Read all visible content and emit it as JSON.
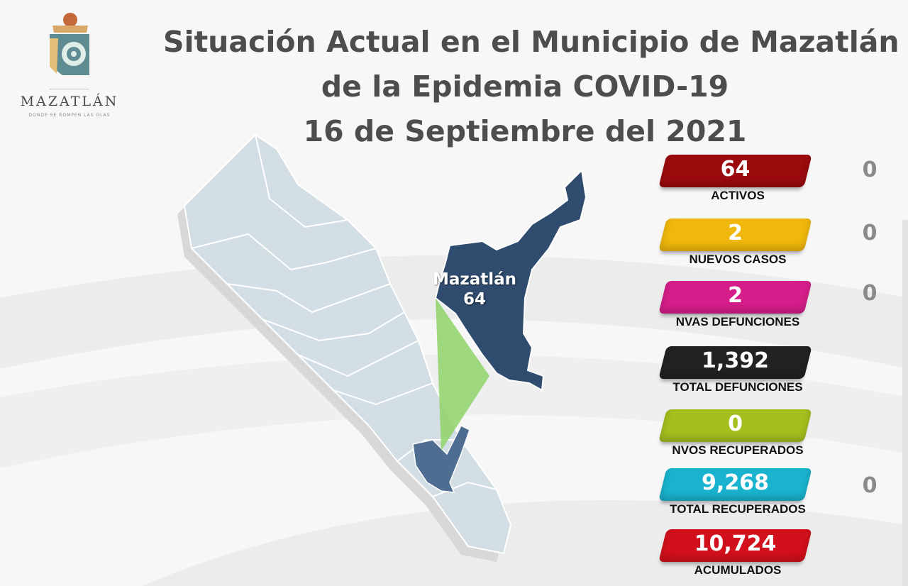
{
  "logo": {
    "wordmark": "MAZATLÁN",
    "tagline": "DONDE SE ROMPEN LAS OLAS",
    "icon": "mazatlan-shell-logo"
  },
  "title": {
    "line1": "Situación Actual en el Municipio de Mazatlán",
    "line2": "de la Epidemia COVID-19",
    "line3": "16 de Septiembre del 2021"
  },
  "map": {
    "region_name": "Mazatlán",
    "region_value": "64",
    "highlight_color": "#2f4b6e",
    "state_color": "#d3dde4",
    "callout_color": "#8fd36a"
  },
  "stats": [
    {
      "value": "64",
      "label": "ACTIVOS",
      "color": "#9b0a0d",
      "delta": "0"
    },
    {
      "value": "2",
      "label": "NUEVOS CASOS",
      "color": "#f0b80c",
      "delta": "0"
    },
    {
      "value": "2",
      "label": "NVAS DEFUNCIONES",
      "color": "#d61e8a",
      "delta": "0"
    },
    {
      "value": "1,392",
      "label": "TOTAL DEFUNCIONES",
      "color": "#222222",
      "delta": ""
    },
    {
      "value": "0",
      "label": "NVOS RECUPERADOS",
      "color": "#a4bf1e",
      "delta": ""
    },
    {
      "value": "9,268",
      "label": "TOTAL RECUPERADOS",
      "color": "#1ab3cf",
      "delta": "0"
    },
    {
      "value": "10,724",
      "label": "ACUMULADOS",
      "color": "#d2101b",
      "delta": ""
    }
  ]
}
